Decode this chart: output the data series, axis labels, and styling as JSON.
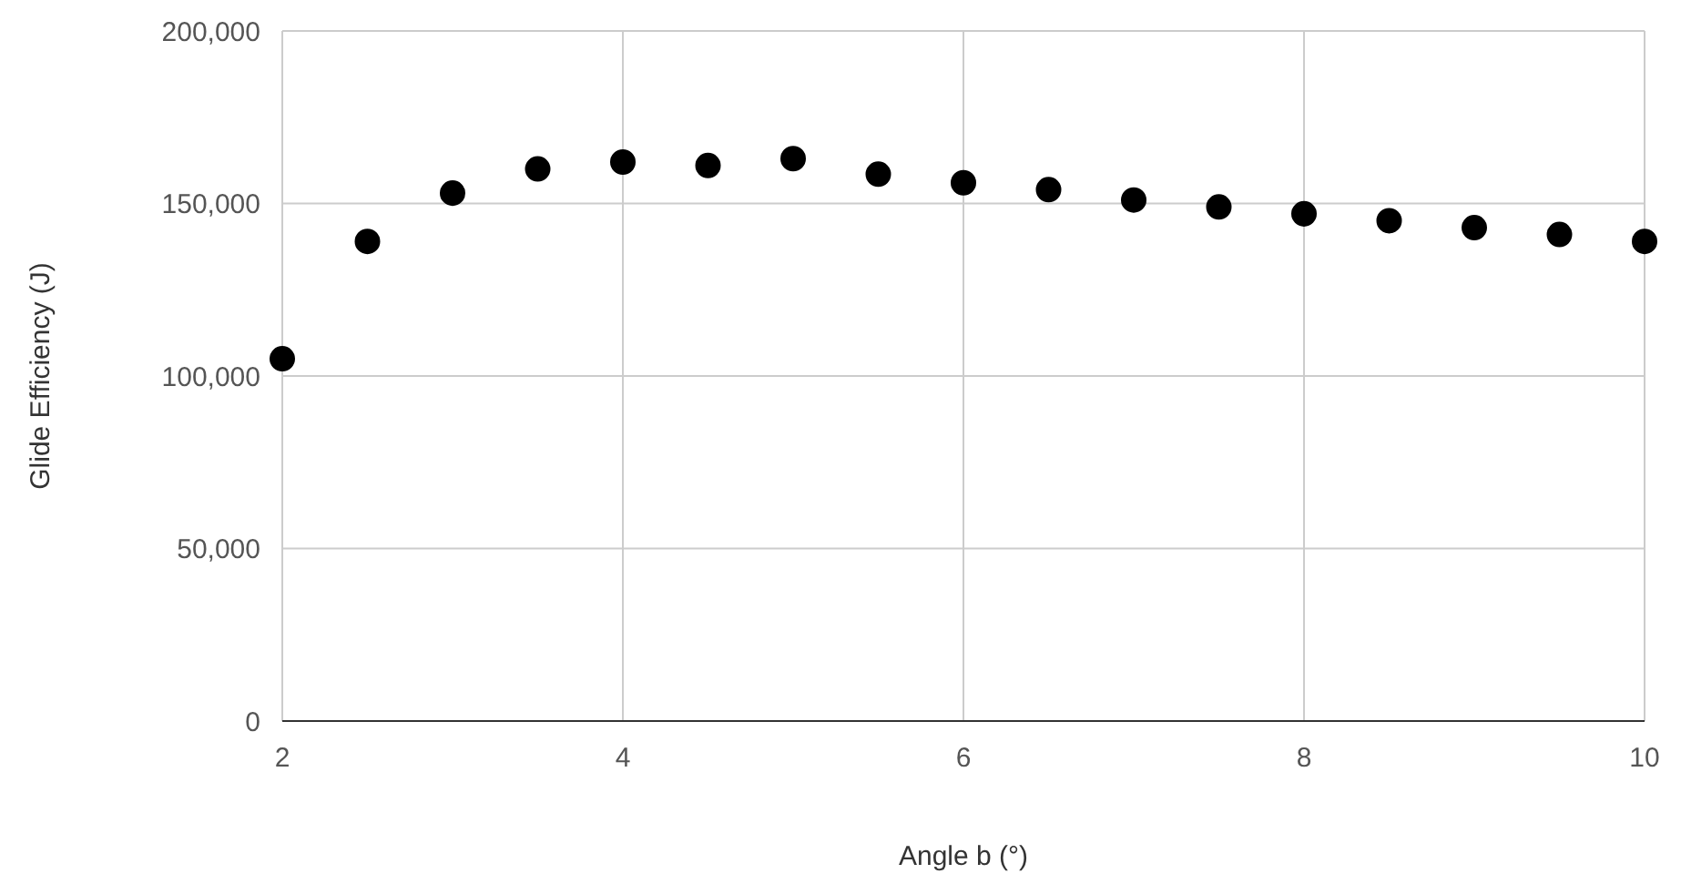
{
  "chart_data": {
    "type": "scatter",
    "xlabel": "Angle b (°)",
    "ylabel": "Glide Efficiency (J)",
    "x": [
      2,
      2.5,
      3,
      3.5,
      4,
      4.5,
      5,
      5.5,
      6,
      6.5,
      7,
      7.5,
      8,
      8.5,
      9,
      9.5,
      10
    ],
    "series": [
      {
        "color": "#000000",
        "values": [
          105000,
          139000,
          153000,
          160000,
          162000,
          161000,
          163000,
          158500,
          156000,
          154000,
          151000,
          149000,
          147000,
          145000,
          143000,
          141000,
          139000
        ]
      }
    ],
    "xlim": [
      2,
      10
    ],
    "xticks": [
      2,
      4,
      6,
      8,
      10
    ],
    "ylim": [
      0,
      200000
    ],
    "yticks": [
      {
        "value": 0,
        "label": "0"
      },
      {
        "value": 50000,
        "label": "50,000"
      },
      {
        "value": 100000,
        "label": "100,000"
      },
      {
        "value": 150000,
        "label": "150,000"
      },
      {
        "value": 200000,
        "label": "200,000"
      }
    ],
    "grid": true,
    "marker": "circle"
  }
}
